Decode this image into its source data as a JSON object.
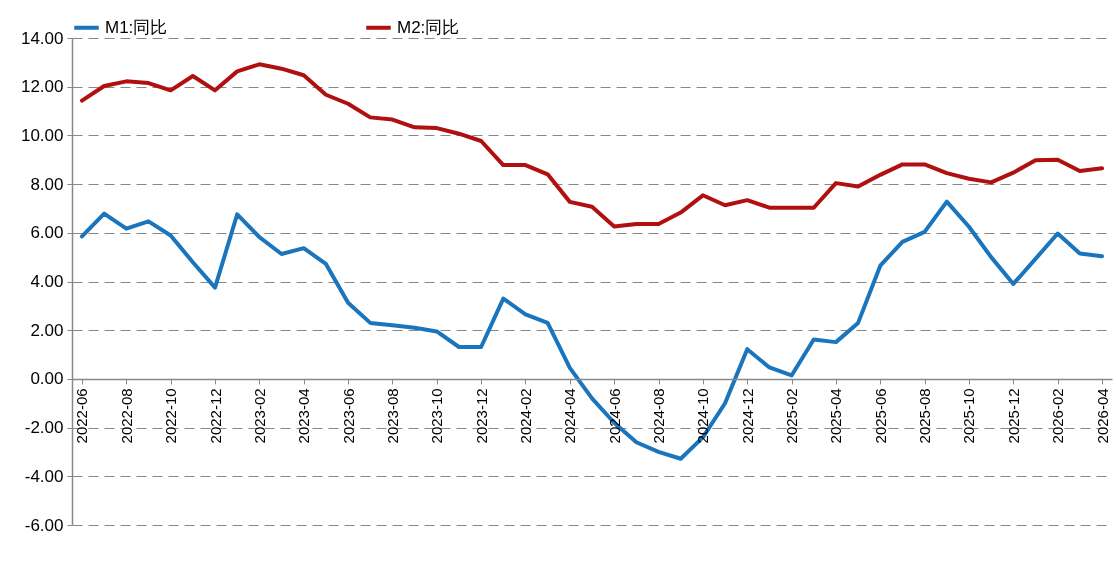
{
  "chart_data": {
    "type": "line",
    "categories": [
      "2022-06",
      null,
      "2022-08",
      null,
      "2022-10",
      null,
      "2022-12",
      null,
      "2023-02",
      null,
      "2023-04",
      null,
      "2023-06",
      null,
      "2023-08",
      null,
      "2023-10",
      null,
      "2023-12",
      null,
      "2024-02",
      null,
      "2024-04",
      null,
      "2024-06",
      null,
      "2024-08",
      null,
      "2024-10",
      null,
      "2024-12",
      null,
      "2025-02",
      null,
      "2025-04",
      null,
      "2025-06",
      null,
      "2025-08",
      null,
      "2025-10",
      null,
      "2025-12",
      null,
      "2026-02",
      null,
      "2026-04"
    ],
    "series": [
      {
        "name": "M1:同比",
        "color": "#1a75bc",
        "values": [
          5.85,
          6.79,
          6.17,
          6.47,
          5.89,
          4.79,
          3.75,
          6.76,
          5.82,
          5.13,
          5.37,
          4.72,
          3.13,
          2.3,
          2.2,
          2.1,
          1.95,
          1.31,
          1.31,
          3.3,
          2.65,
          2.3,
          0.45,
          -0.8,
          -1.8,
          -2.6,
          -3.0,
          -3.28,
          -2.4,
          -1.0,
          1.22,
          0.47,
          0.14,
          1.62,
          1.51,
          2.3,
          4.65,
          5.63,
          6.04,
          7.28,
          6.25,
          5.0,
          3.9,
          4.93,
          5.97,
          5.15,
          5.04
        ]
      },
      {
        "name": "M2:同比",
        "color": "#b01010",
        "values": [
          11.43,
          12.03,
          12.22,
          12.15,
          11.85,
          12.44,
          11.85,
          12.63,
          12.92,
          12.74,
          12.47,
          11.67,
          11.3,
          10.74,
          10.65,
          10.33,
          10.3,
          10.07,
          9.77,
          8.78,
          8.78,
          8.4,
          7.27,
          7.07,
          6.26,
          6.36,
          6.36,
          6.83,
          7.54,
          7.13,
          7.34,
          7.03,
          7.03,
          7.03,
          8.04,
          7.9,
          8.38,
          8.81,
          8.81,
          8.45,
          8.22,
          8.07,
          8.47,
          8.98,
          9.0,
          8.54,
          8.65
        ]
      }
    ],
    "ylim": [
      -6,
      14
    ],
    "yticks": [
      {
        "value": -6,
        "label": "-6.00"
      },
      {
        "value": -4,
        "label": "-4.00"
      },
      {
        "value": -2,
        "label": "-2.00"
      },
      {
        "value": 0,
        "label": "0.00"
      },
      {
        "value": 2,
        "label": "2.00"
      },
      {
        "value": 4,
        "label": "4.00"
      },
      {
        "value": 6,
        "label": "6.00"
      },
      {
        "value": 8,
        "label": "8.00"
      },
      {
        "value": 10,
        "label": "10.00"
      },
      {
        "value": 12,
        "label": "12.00"
      },
      {
        "value": 14,
        "label": "14.00"
      }
    ],
    "grid": "y",
    "legend": "top"
  }
}
